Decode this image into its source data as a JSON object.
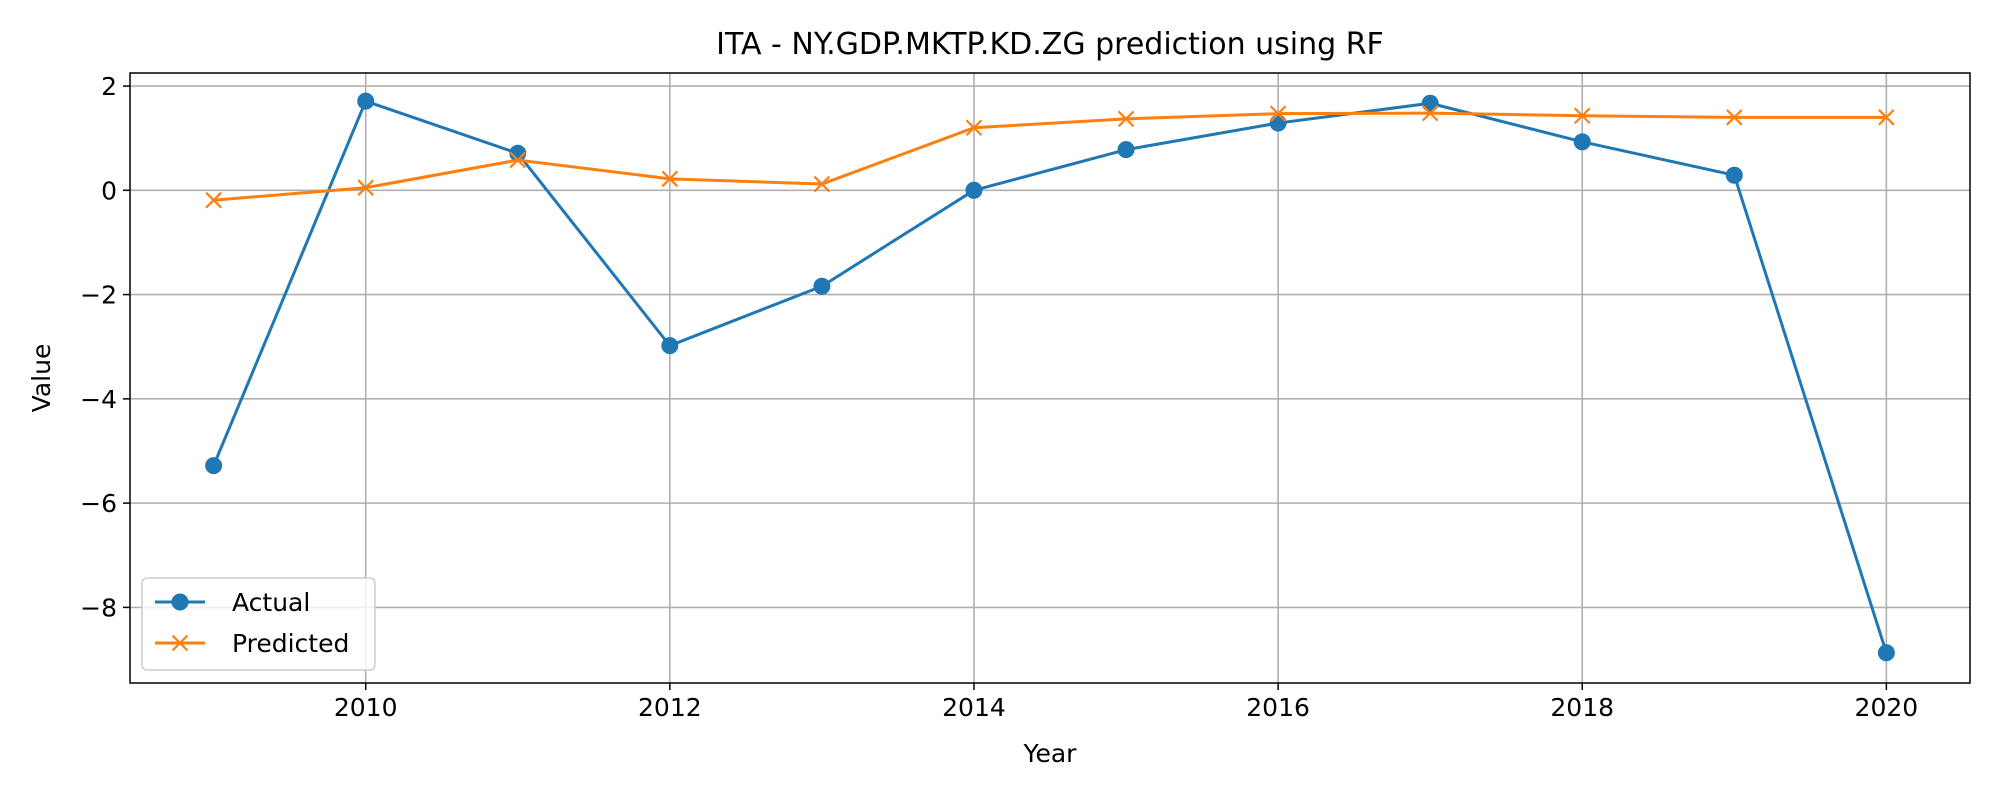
{
  "chart_data": {
    "type": "line",
    "title": "ITA - NY.GDP.MKTP.KD.ZG prediction using RF",
    "xlabel": "Year",
    "ylabel": "Value",
    "xlim": [
      2008.45,
      2020.55
    ],
    "ylim": [
      -9.45,
      2.25
    ],
    "x_ticks": [
      2010,
      2012,
      2014,
      2016,
      2018,
      2020
    ],
    "y_ticks": [
      2,
      0,
      -2,
      -4,
      -6,
      -8
    ],
    "x_tick_labels": [
      "2010",
      "2012",
      "2014",
      "2016",
      "2018",
      "2020"
    ],
    "y_tick_labels": [
      "2",
      "0",
      "−2",
      "−4",
      "−6",
      "−8"
    ],
    "grid": true,
    "legend_position": "lower-left",
    "x": [
      2009,
      2010,
      2011,
      2012,
      2013,
      2014,
      2015,
      2016,
      2017,
      2018,
      2019,
      2020
    ],
    "series": [
      {
        "name": "Actual",
        "color": "#1f77b4",
        "marker": "circle",
        "values": [
          -5.28,
          1.71,
          0.71,
          -2.98,
          -1.84,
          0.0,
          0.78,
          1.29,
          1.67,
          0.93,
          0.29,
          -8.87
        ]
      },
      {
        "name": "Predicted",
        "color": "#ff7f0e",
        "marker": "x",
        "values": [
          -0.19,
          0.05,
          0.58,
          0.22,
          0.12,
          1.2,
          1.37,
          1.47,
          1.48,
          1.43,
          1.4,
          1.4
        ]
      }
    ]
  }
}
